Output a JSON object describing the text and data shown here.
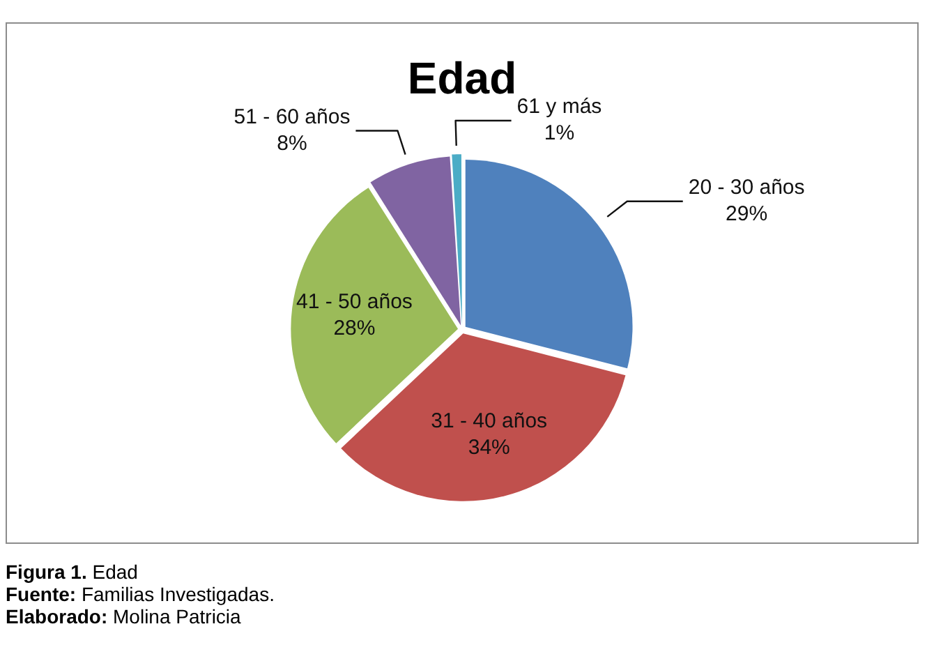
{
  "chart_data": {
    "type": "pie",
    "title": "Edad",
    "categories": [
      "20 - 30 años",
      "31 - 40 años",
      "41 - 50 años",
      "51 - 60 años",
      "61 y más"
    ],
    "values": [
      29,
      34,
      28,
      8,
      1
    ],
    "value_labels": [
      "29%",
      "34%",
      "28%",
      "8%",
      "1%"
    ],
    "colors": [
      "#4f81bd",
      "#c0504d",
      "#9bbb59",
      "#8064a2",
      "#4bacc6"
    ],
    "annotations": [
      "Figura 1. Edad",
      "Fuente: Familias Investigadas.",
      "Elaborado: Molina Patricia"
    ]
  }
}
